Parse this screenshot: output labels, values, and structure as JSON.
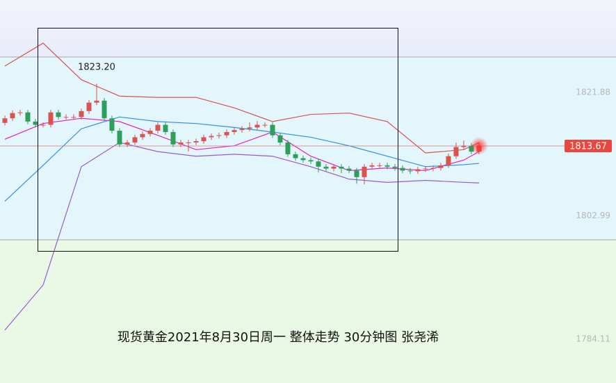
{
  "chart_data": {
    "type": "candlestick",
    "title": "现货黄金2021年8月30日周一 整体走势 30分钟图 张尧浠",
    "high_label": "1823.20",
    "last_price": 1813.67,
    "ylim": [
      1777.4,
      1836.0
    ],
    "yticks": [
      1784.11,
      1802.99,
      1821.88
    ],
    "up_color": "#d9534f",
    "down_color": "#2e9e5b",
    "candles": [
      [
        1817.2,
        1818.3,
        1816.8,
        1817.9
      ],
      [
        1817.9,
        1819.1,
        1817.5,
        1818.7
      ],
      [
        1818.7,
        1819.2,
        1818.3,
        1818.8
      ],
      [
        1818.8,
        1819.2,
        1817.0,
        1817.4
      ],
      [
        1817.4,
        1817.8,
        1816.5,
        1816.9
      ],
      [
        1816.9,
        1817.3,
        1816.5,
        1816.9
      ],
      [
        1816.9,
        1819.2,
        1816.5,
        1818.8
      ],
      [
        1818.8,
        1819.2,
        1817.7,
        1818.1
      ],
      [
        1818.1,
        1818.5,
        1817.7,
        1818.1
      ],
      [
        1818.1,
        1818.5,
        1817.7,
        1818.1
      ],
      [
        1818.1,
        1819.4,
        1817.7,
        1819.0
      ],
      [
        1819.0,
        1820.7,
        1818.6,
        1820.3
      ],
      [
        1820.3,
        1823.2,
        1819.9,
        1820.6
      ],
      [
        1820.6,
        1821.0,
        1817.5,
        1817.9
      ],
      [
        1817.9,
        1818.3,
        1815.6,
        1816.0
      ],
      [
        1816.0,
        1816.4,
        1813.5,
        1813.9
      ],
      [
        1813.9,
        1814.6,
        1813.5,
        1814.2
      ],
      [
        1814.2,
        1815.4,
        1813.8,
        1815.0
      ],
      [
        1815.0,
        1815.9,
        1814.6,
        1815.5
      ],
      [
        1815.5,
        1816.4,
        1815.1,
        1816.0
      ],
      [
        1816.0,
        1817.3,
        1815.6,
        1816.9
      ],
      [
        1816.9,
        1817.3,
        1815.4,
        1815.8
      ],
      [
        1815.8,
        1816.2,
        1813.5,
        1813.9
      ],
      [
        1813.9,
        1814.6,
        1813.5,
        1814.2
      ],
      [
        1814.2,
        1814.6,
        1812.8,
        1814.2
      ],
      [
        1814.2,
        1814.8,
        1813.8,
        1814.4
      ],
      [
        1814.4,
        1815.4,
        1814.0,
        1815.0
      ],
      [
        1815.0,
        1815.6,
        1814.6,
        1815.2
      ],
      [
        1815.2,
        1815.7,
        1814.8,
        1815.3
      ],
      [
        1815.3,
        1816.2,
        1814.9,
        1815.8
      ],
      [
        1815.8,
        1816.5,
        1815.4,
        1816.1
      ],
      [
        1816.1,
        1816.7,
        1815.7,
        1816.3
      ],
      [
        1816.3,
        1817.3,
        1815.9,
        1816.5
      ],
      [
        1816.5,
        1817.5,
        1816.1,
        1816.9
      ],
      [
        1816.9,
        1817.3,
        1816.5,
        1816.9
      ],
      [
        1816.9,
        1817.3,
        1814.9,
        1815.3
      ],
      [
        1815.3,
        1815.7,
        1813.8,
        1814.2
      ],
      [
        1814.2,
        1814.6,
        1812.0,
        1812.4
      ],
      [
        1812.4,
        1812.8,
        1811.4,
        1811.8
      ],
      [
        1811.8,
        1812.2,
        1811.1,
        1811.5
      ],
      [
        1811.5,
        1811.9,
        1810.9,
        1811.3
      ],
      [
        1811.3,
        1811.7,
        1809.6,
        1810.5
      ],
      [
        1810.5,
        1810.9,
        1809.8,
        1810.2
      ],
      [
        1810.2,
        1810.9,
        1809.8,
        1810.5
      ],
      [
        1810.5,
        1810.9,
        1809.5,
        1810.2
      ],
      [
        1810.2,
        1810.6,
        1809.5,
        1809.9
      ],
      [
        1809.9,
        1810.3,
        1807.9,
        1808.9
      ],
      [
        1808.9,
        1810.9,
        1807.8,
        1810.5
      ],
      [
        1810.5,
        1811.1,
        1810.1,
        1810.7
      ],
      [
        1810.7,
        1811.1,
        1810.3,
        1810.7
      ],
      [
        1810.7,
        1811.1,
        1810.1,
        1810.5
      ],
      [
        1810.5,
        1810.9,
        1809.9,
        1810.3
      ],
      [
        1810.3,
        1810.7,
        1809.5,
        1809.9
      ],
      [
        1809.9,
        1810.3,
        1809.4,
        1809.8
      ],
      [
        1809.8,
        1810.5,
        1809.4,
        1810.1
      ],
      [
        1810.1,
        1810.6,
        1809.7,
        1810.2
      ],
      [
        1810.2,
        1810.7,
        1809.8,
        1810.3
      ],
      [
        1810.3,
        1811.1,
        1809.9,
        1810.7
      ],
      [
        1810.7,
        1812.5,
        1810.3,
        1812.1
      ],
      [
        1812.1,
        1814.2,
        1811.7,
        1813.5
      ],
      [
        1813.5,
        1814.5,
        1813.1,
        1813.7
      ],
      [
        1813.7,
        1814.1,
        1812.4,
        1812.8
      ],
      [
        1812.8,
        1814.2,
        1812.4,
        1813.67
      ]
    ],
    "line_index": [
      0,
      5,
      10,
      15,
      20,
      25,
      30,
      35,
      40,
      45,
      50,
      55,
      60,
      62
    ],
    "lines": [
      {
        "color": "#d9534f",
        "values": [
          1825.9,
          1829.4,
          1823.8,
          1821.3,
          1821.1,
          1821.1,
          1819.5,
          1817.4,
          1818.5,
          1818.7,
          1817.4,
          1812.6,
          1813.1,
          1814.2
        ]
      },
      {
        "color": "#9b59d0",
        "values": [
          1785.5,
          1792.4,
          1810.5,
          1814.2,
          1812.8,
          1812.1,
          1812.4,
          1812.1,
          1810.5,
          1808.6,
          1808.1,
          1808.4,
          1808.1,
          1808.0
        ]
      },
      {
        "color": "#2f8fe6",
        "values": [
          1805.2,
          1810.7,
          1816.3,
          1818.1,
          1817.4,
          1817.1,
          1816.5,
          1815.8,
          1815.0,
          1813.7,
          1812.1,
          1810.5,
          1810.8,
          1811.0
        ]
      },
      {
        "color": "#e020c8",
        "values": [
          1814.7,
          1817.1,
          1817.9,
          1817.4,
          1815.3,
          1813.1,
          1813.7,
          1815.8,
          1812.1,
          1809.9,
          1810.3,
          1809.9,
          1811.5,
          1812.8
        ]
      }
    ]
  }
}
